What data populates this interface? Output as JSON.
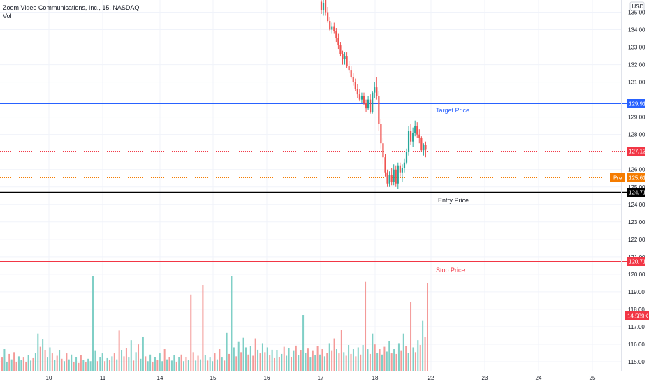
{
  "header": {
    "symbol_title": "Zoom Video Communications, Inc., 15, NASDAQ",
    "volume_label": "Vol",
    "currency": "USD"
  },
  "levels": {
    "target": {
      "price": 129.91,
      "tag": "129.91",
      "label": "Target Price",
      "color": "#2962ff"
    },
    "last": {
      "price": 127.13,
      "tag": "127.13",
      "color": "#f23645"
    },
    "pre": {
      "price": 125.61,
      "tag": "125.61",
      "badge": "Pre",
      "color": "#f57c00"
    },
    "entry": {
      "price": 124.71,
      "tag": "124.71",
      "label": "Entry Price",
      "color": "#000000"
    },
    "stop": {
      "price": 120.71,
      "tag": "120.71",
      "label": "Stop Price",
      "color": "#f23645"
    },
    "volume": {
      "tag": "14.589K",
      "color": "#f23645"
    }
  },
  "colors": {
    "up": "#26a69a",
    "down": "#ef5350",
    "grid": "#f0f3fa",
    "axis_line": "#d1d4dc"
  },
  "chart_data": {
    "type": "candlestick",
    "timeframe": "15",
    "x_ticks": [
      "10",
      "11",
      "14",
      "15",
      "16",
      "17",
      "18",
      "22",
      "23",
      "24",
      "25"
    ],
    "y_ticks": [
      "135.00",
      "134.00",
      "133.00",
      "132.00",
      "131.00",
      "129.00",
      "128.00",
      "126.00",
      "125.00",
      "124.00",
      "123.00",
      "122.00",
      "121.00",
      "120.00",
      "119.00",
      "118.00",
      "117.00",
      "116.00",
      "115.00"
    ],
    "ylim": [
      114.6,
      135.5
    ],
    "candles": [
      {
        "o": 135.6,
        "h": 135.9,
        "l": 134.9,
        "c": 135.1
      },
      {
        "o": 135.1,
        "h": 135.8,
        "l": 134.8,
        "c": 135.5
      },
      {
        "o": 135.8,
        "h": 136.0,
        "l": 134.8,
        "c": 135.0
      },
      {
        "o": 135.0,
        "h": 135.3,
        "l": 134.4,
        "c": 134.5
      },
      {
        "o": 134.5,
        "h": 134.7,
        "l": 133.9,
        "c": 134.0
      },
      {
        "o": 134.0,
        "h": 134.4,
        "l": 133.8,
        "c": 134.2
      },
      {
        "o": 134.2,
        "h": 134.4,
        "l": 133.8,
        "c": 133.9
      },
      {
        "o": 133.9,
        "h": 134.1,
        "l": 133.3,
        "c": 133.5
      },
      {
        "o": 133.5,
        "h": 133.8,
        "l": 132.9,
        "c": 133.1
      },
      {
        "o": 133.1,
        "h": 133.3,
        "l": 132.5,
        "c": 132.6
      },
      {
        "o": 132.6,
        "h": 132.8,
        "l": 132.0,
        "c": 132.3
      },
      {
        "o": 132.3,
        "h": 132.7,
        "l": 132.0,
        "c": 132.5
      },
      {
        "o": 132.5,
        "h": 132.7,
        "l": 131.8,
        "c": 131.9
      },
      {
        "o": 131.9,
        "h": 132.2,
        "l": 131.5,
        "c": 131.7
      },
      {
        "o": 131.7,
        "h": 131.9,
        "l": 131.2,
        "c": 131.3
      },
      {
        "o": 131.3,
        "h": 131.5,
        "l": 130.8,
        "c": 131.0
      },
      {
        "o": 131.0,
        "h": 131.2,
        "l": 130.5,
        "c": 130.6
      },
      {
        "o": 130.6,
        "h": 130.9,
        "l": 130.1,
        "c": 130.3
      },
      {
        "o": 130.3,
        "h": 130.6,
        "l": 129.9,
        "c": 130.0
      },
      {
        "o": 130.0,
        "h": 130.4,
        "l": 129.8,
        "c": 130.2
      },
      {
        "o": 130.2,
        "h": 130.4,
        "l": 129.7,
        "c": 129.8
      },
      {
        "o": 129.8,
        "h": 130.0,
        "l": 129.3,
        "c": 129.5
      },
      {
        "o": 129.5,
        "h": 130.2,
        "l": 129.4,
        "c": 130.0
      },
      {
        "o": 130.0,
        "h": 130.3,
        "l": 129.2,
        "c": 129.3
      },
      {
        "o": 129.3,
        "h": 130.5,
        "l": 129.2,
        "c": 130.4
      },
      {
        "o": 130.4,
        "h": 131.0,
        "l": 130.1,
        "c": 130.7
      },
      {
        "o": 130.7,
        "h": 131.3,
        "l": 130.0,
        "c": 130.2
      },
      {
        "o": 130.2,
        "h": 130.5,
        "l": 128.2,
        "c": 128.6
      },
      {
        "o": 128.6,
        "h": 128.9,
        "l": 127.2,
        "c": 127.5
      },
      {
        "o": 127.5,
        "h": 127.8,
        "l": 126.3,
        "c": 126.7
      },
      {
        "o": 126.7,
        "h": 126.9,
        "l": 125.6,
        "c": 125.8
      },
      {
        "o": 125.8,
        "h": 126.0,
        "l": 125.0,
        "c": 125.2
      },
      {
        "o": 125.2,
        "h": 125.9,
        "l": 125.0,
        "c": 125.7
      },
      {
        "o": 125.7,
        "h": 126.1,
        "l": 125.1,
        "c": 125.3
      },
      {
        "o": 125.3,
        "h": 126.3,
        "l": 125.1,
        "c": 126.0
      },
      {
        "o": 126.0,
        "h": 126.2,
        "l": 125.0,
        "c": 125.2
      },
      {
        "o": 125.2,
        "h": 126.4,
        "l": 124.9,
        "c": 126.2
      },
      {
        "o": 126.2,
        "h": 126.4,
        "l": 125.6,
        "c": 125.8
      },
      {
        "o": 125.8,
        "h": 126.3,
        "l": 125.3,
        "c": 126.1
      },
      {
        "o": 126.1,
        "h": 126.6,
        "l": 125.8,
        "c": 126.4
      },
      {
        "o": 126.4,
        "h": 127.2,
        "l": 126.3,
        "c": 127.0
      },
      {
        "o": 127.0,
        "h": 128.5,
        "l": 126.8,
        "c": 128.2
      },
      {
        "o": 128.2,
        "h": 128.6,
        "l": 127.4,
        "c": 127.6
      },
      {
        "o": 127.6,
        "h": 128.4,
        "l": 127.3,
        "c": 128.1
      },
      {
        "o": 128.1,
        "h": 128.8,
        "l": 127.9,
        "c": 128.5
      },
      {
        "o": 128.5,
        "h": 128.7,
        "l": 127.8,
        "c": 128.0
      },
      {
        "o": 128.0,
        "h": 128.3,
        "l": 127.5,
        "c": 127.8
      },
      {
        "o": 127.8,
        "h": 127.9,
        "l": 127.0,
        "c": 127.1
      },
      {
        "o": 127.1,
        "h": 127.5,
        "l": 126.8,
        "c": 127.4
      },
      {
        "o": 127.4,
        "h": 127.6,
        "l": 126.7,
        "c": 127.13
      }
    ],
    "volume": [
      {
        "v": 2.2,
        "up": false
      },
      {
        "v": 3.6,
        "up": true
      },
      {
        "v": 1.4,
        "up": true
      },
      {
        "v": 2.8,
        "up": false
      },
      {
        "v": 1.9,
        "up": true
      },
      {
        "v": 3.1,
        "up": false
      },
      {
        "v": 1.5,
        "up": false
      },
      {
        "v": 2.4,
        "up": true
      },
      {
        "v": 1.8,
        "up": true
      },
      {
        "v": 2.2,
        "up": false
      },
      {
        "v": 1.4,
        "up": false
      },
      {
        "v": 2.6,
        "up": true
      },
      {
        "v": 1.7,
        "up": true
      },
      {
        "v": 2.1,
        "up": false
      },
      {
        "v": 3.0,
        "up": true
      },
      {
        "v": 6.2,
        "up": true
      },
      {
        "v": 4.0,
        "up": false
      },
      {
        "v": 5.3,
        "up": true
      },
      {
        "v": 3.4,
        "up": false
      },
      {
        "v": 2.2,
        "up": true
      },
      {
        "v": 3.9,
        "up": true
      },
      {
        "v": 2.9,
        "up": false
      },
      {
        "v": 1.8,
        "up": true
      },
      {
        "v": 2.5,
        "up": false
      },
      {
        "v": 3.4,
        "up": true
      },
      {
        "v": 2.0,
        "up": false
      },
      {
        "v": 1.6,
        "up": true
      },
      {
        "v": 2.9,
        "up": false
      },
      {
        "v": 1.9,
        "up": true
      },
      {
        "v": 2.7,
        "up": true
      },
      {
        "v": 1.5,
        "up": false
      },
      {
        "v": 2.3,
        "up": true
      },
      {
        "v": 1.3,
        "up": false
      },
      {
        "v": 2.6,
        "up": false
      },
      {
        "v": 1.8,
        "up": true
      },
      {
        "v": 1.5,
        "up": false
      },
      {
        "v": 2.0,
        "up": true
      },
      {
        "v": 1.6,
        "up": true
      },
      {
        "v": 15.7,
        "up": true
      },
      {
        "v": 3.3,
        "up": true
      },
      {
        "v": 1.6,
        "up": false
      },
      {
        "v": 2.3,
        "up": true
      },
      {
        "v": 2.9,
        "up": true
      },
      {
        "v": 1.6,
        "up": false
      },
      {
        "v": 2.1,
        "up": true
      },
      {
        "v": 1.8,
        "up": false
      },
      {
        "v": 2.4,
        "up": true
      },
      {
        "v": 2.9,
        "up": false
      },
      {
        "v": 1.9,
        "up": true
      },
      {
        "v": 6.7,
        "up": false
      },
      {
        "v": 3.4,
        "up": true
      },
      {
        "v": 2.4,
        "up": false
      },
      {
        "v": 3.8,
        "up": false
      },
      {
        "v": 2.2,
        "up": true
      },
      {
        "v": 5.1,
        "up": true
      },
      {
        "v": 1.7,
        "up": false
      },
      {
        "v": 3.1,
        "up": true
      },
      {
        "v": 4.4,
        "up": false
      },
      {
        "v": 2.0,
        "up": true
      },
      {
        "v": 5.7,
        "up": true
      },
      {
        "v": 2.4,
        "up": false
      },
      {
        "v": 1.6,
        "up": true
      },
      {
        "v": 2.7,
        "up": true
      },
      {
        "v": 1.5,
        "up": false
      },
      {
        "v": 2.3,
        "up": true
      },
      {
        "v": 1.8,
        "up": false
      },
      {
        "v": 2.9,
        "up": true
      },
      {
        "v": 1.6,
        "up": true
      },
      {
        "v": 3.6,
        "up": false
      },
      {
        "v": 1.9,
        "up": true
      },
      {
        "v": 2.3,
        "up": false
      },
      {
        "v": 1.7,
        "up": true
      },
      {
        "v": 2.6,
        "up": true
      },
      {
        "v": 1.5,
        "up": false
      },
      {
        "v": 2.3,
        "up": true
      },
      {
        "v": 2.7,
        "up": false
      },
      {
        "v": 1.6,
        "up": true
      },
      {
        "v": 2.3,
        "up": false
      },
      {
        "v": 1.8,
        "up": true
      },
      {
        "v": 12.7,
        "up": false
      },
      {
        "v": 3.1,
        "up": false
      },
      {
        "v": 1.7,
        "up": true
      },
      {
        "v": 2.5,
        "up": false
      },
      {
        "v": 1.9,
        "up": true
      },
      {
        "v": 14.3,
        "up": false
      },
      {
        "v": 2.6,
        "up": true
      },
      {
        "v": 1.7,
        "up": false
      },
      {
        "v": 2.2,
        "up": true
      },
      {
        "v": 1.6,
        "up": true
      },
      {
        "v": 2.9,
        "up": false
      },
      {
        "v": 1.9,
        "up": true
      },
      {
        "v": 3.6,
        "up": false
      },
      {
        "v": 2.2,
        "up": true
      },
      {
        "v": 1.7,
        "up": false
      },
      {
        "v": 6.3,
        "up": true
      },
      {
        "v": 2.8,
        "up": false
      },
      {
        "v": 15.8,
        "up": true
      },
      {
        "v": 3.9,
        "up": true
      },
      {
        "v": 2.4,
        "up": false
      },
      {
        "v": 4.8,
        "up": true
      },
      {
        "v": 3.1,
        "up": false
      },
      {
        "v": 5.5,
        "up": true
      },
      {
        "v": 3.9,
        "up": true
      },
      {
        "v": 2.7,
        "up": false
      },
      {
        "v": 4.1,
        "up": true
      },
      {
        "v": 2.5,
        "up": false
      },
      {
        "v": 5.4,
        "up": false
      },
      {
        "v": 3.5,
        "up": true
      },
      {
        "v": 2.9,
        "up": false
      },
      {
        "v": 4.6,
        "up": true
      },
      {
        "v": 3.1,
        "up": false
      },
      {
        "v": 3.9,
        "up": true
      },
      {
        "v": 2.6,
        "up": false
      },
      {
        "v": 3.5,
        "up": true
      },
      {
        "v": 2.1,
        "up": false
      },
      {
        "v": 3.4,
        "up": true
      },
      {
        "v": 2.3,
        "up": false
      },
      {
        "v": 2.8,
        "up": true
      },
      {
        "v": 4.0,
        "up": false
      },
      {
        "v": 2.5,
        "up": true
      },
      {
        "v": 3.8,
        "up": true
      },
      {
        "v": 2.3,
        "up": false
      },
      {
        "v": 3.3,
        "up": true
      },
      {
        "v": 4.2,
        "up": false
      },
      {
        "v": 2.6,
        "up": true
      },
      {
        "v": 3.4,
        "up": false
      },
      {
        "v": 9.3,
        "up": true
      },
      {
        "v": 3.0,
        "up": true
      },
      {
        "v": 3.7,
        "up": false
      },
      {
        "v": 2.2,
        "up": true
      },
      {
        "v": 3.3,
        "up": false
      },
      {
        "v": 2.6,
        "up": true
      },
      {
        "v": 4.1,
        "up": false
      },
      {
        "v": 2.7,
        "up": true
      },
      {
        "v": 3.6,
        "up": false
      },
      {
        "v": 2.4,
        "up": true
      },
      {
        "v": 3.0,
        "up": false
      },
      {
        "v": 4.6,
        "up": true
      },
      {
        "v": 3.3,
        "up": false
      },
      {
        "v": 5.4,
        "up": false
      },
      {
        "v": 3.6,
        "up": true
      },
      {
        "v": 2.9,
        "up": false
      },
      {
        "v": 6.8,
        "up": false
      },
      {
        "v": 3.1,
        "up": true
      },
      {
        "v": 2.5,
        "up": false
      },
      {
        "v": 4.3,
        "up": true
      },
      {
        "v": 2.8,
        "up": false
      },
      {
        "v": 3.6,
        "up": true
      },
      {
        "v": 2.4,
        "up": false
      },
      {
        "v": 3.9,
        "up": true
      },
      {
        "v": 2.7,
        "up": false
      },
      {
        "v": 4.3,
        "up": true
      },
      {
        "v": 14.8,
        "up": false
      },
      {
        "v": 3.6,
        "up": true
      },
      {
        "v": 2.8,
        "up": false
      },
      {
        "v": 6.2,
        "up": true
      },
      {
        "v": 4.4,
        "up": false
      },
      {
        "v": 3.0,
        "up": true
      },
      {
        "v": 3.6,
        "up": false
      },
      {
        "v": 2.7,
        "up": true
      },
      {
        "v": 4.0,
        "up": false
      },
      {
        "v": 3.2,
        "up": true
      },
      {
        "v": 5.0,
        "up": true
      },
      {
        "v": 2.9,
        "up": false
      },
      {
        "v": 3.6,
        "up": true
      },
      {
        "v": 2.8,
        "up": false
      },
      {
        "v": 4.6,
        "up": true
      },
      {
        "v": 3.3,
        "up": false
      },
      {
        "v": 6.2,
        "up": true
      },
      {
        "v": 4.1,
        "up": false
      },
      {
        "v": 3.0,
        "up": true
      },
      {
        "v": 11.5,
        "up": false
      },
      {
        "v": 3.9,
        "up": true
      },
      {
        "v": 3.1,
        "up": false
      },
      {
        "v": 5.1,
        "up": true
      },
      {
        "v": 4.3,
        "up": false
      },
      {
        "v": 8.3,
        "up": true
      },
      {
        "v": 5.6,
        "up": false
      },
      {
        "v": 14.6,
        "up": false
      }
    ]
  }
}
